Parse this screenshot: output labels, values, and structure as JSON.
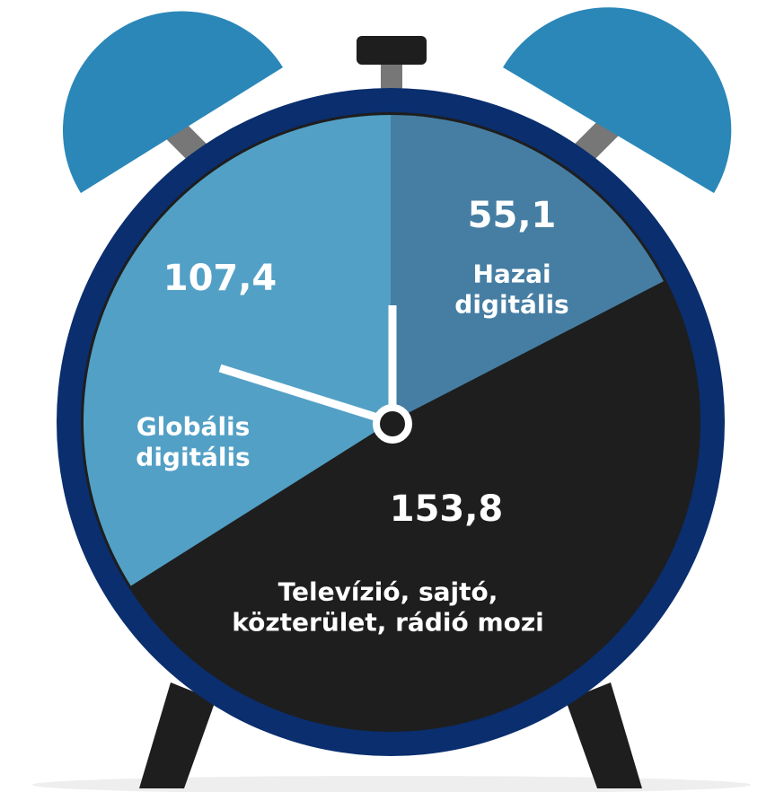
{
  "chart_data": {
    "type": "pie",
    "categories": [
      "Hazai digitális",
      "Televízió, sajtó, közterület, rádió mozi",
      "Globális digitális"
    ],
    "values": [
      55.1,
      153.8,
      107.4
    ],
    "value_labels": [
      "55,1",
      "153,8",
      "107,4"
    ],
    "colors": [
      "#467ea3",
      "#1e1e1e",
      "#53a0c6"
    ]
  }
}
